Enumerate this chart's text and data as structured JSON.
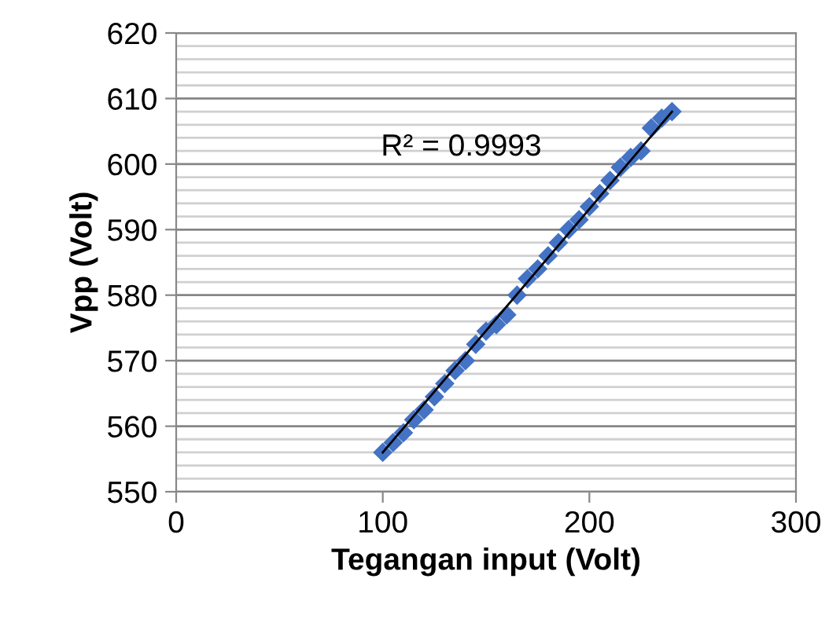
{
  "chart_data": {
    "type": "scatter",
    "xlabel": "Tegangan input (Volt)",
    "ylabel": "Vpp (Volt)",
    "series": [
      {
        "color": "#4472c4",
        "marker": "diamond",
        "x": [
          100,
          105,
          110,
          115,
          120,
          125,
          130,
          135,
          140,
          145,
          150,
          155,
          160,
          165,
          170,
          175,
          180,
          185,
          190,
          195,
          200,
          205,
          210,
          215,
          220,
          225,
          230,
          235,
          240
        ],
        "values": [
          556,
          557.5,
          559,
          561,
          562.5,
          564.5,
          566.5,
          568.5,
          570,
          572.5,
          574.5,
          575.5,
          577,
          580,
          582.5,
          584,
          586,
          588,
          590,
          591.5,
          593.5,
          595.5,
          597.5,
          599.5,
          601,
          602,
          605.5,
          607,
          608
        ]
      },
      {
        "type": "line",
        "color": "#000000",
        "marker": "none",
        "x": [
          100,
          240
        ],
        "values": [
          556,
          608
        ]
      }
    ],
    "annotations": [
      "R² = 0.9993"
    ],
    "xlim": [
      0,
      300
    ],
    "xticks": [
      0,
      100,
      200,
      300
    ],
    "ylim": [
      550,
      620
    ],
    "yticks": [
      550,
      {
        "value": 552,
        "label": null
      },
      {
        "value": 554,
        "label": null
      },
      {
        "value": 556,
        "label": null
      },
      {
        "value": 558,
        "label": null
      },
      560,
      {
        "value": 562,
        "label": null
      },
      {
        "value": 564,
        "label": null
      },
      {
        "value": 566,
        "label": null
      },
      {
        "value": 568,
        "label": null
      },
      570,
      {
        "value": 572,
        "label": null
      },
      {
        "value": 574,
        "label": null
      },
      {
        "value": 576,
        "label": null
      },
      {
        "value": 578,
        "label": null
      },
      580,
      {
        "value": 582,
        "label": null
      },
      {
        "value": 584,
        "label": null
      },
      {
        "value": 586,
        "label": null
      },
      {
        "value": 588,
        "label": null
      },
      590,
      {
        "value": 592,
        "label": null
      },
      {
        "value": 594,
        "label": null
      },
      {
        "value": 596,
        "label": null
      },
      {
        "value": 598,
        "label": null
      },
      600,
      {
        "value": 602,
        "label": null
      },
      {
        "value": 604,
        "label": null
      },
      {
        "value": 606,
        "label": null
      },
      {
        "value": 608,
        "label": null
      },
      610,
      {
        "value": 612,
        "label": null
      },
      {
        "value": 614,
        "label": null
      },
      {
        "value": 616,
        "label": null
      },
      {
        "value": 618,
        "label": null
      },
      620
    ],
    "grid": "y"
  }
}
